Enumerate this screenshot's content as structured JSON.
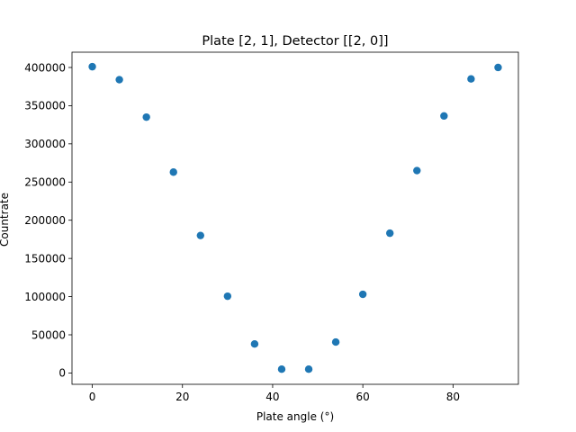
{
  "chart_data": {
    "type": "scatter",
    "title": "Plate [2, 1], Detector [[2, 0]]",
    "xlabel": "Plate angle (°)",
    "ylabel": "Countrate",
    "x": [
      0,
      6,
      12,
      18,
      24,
      30,
      36,
      42,
      48,
      54,
      60,
      66,
      72,
      78,
      84,
      90
    ],
    "y": [
      401000,
      384000,
      335000,
      263000,
      180000,
      100500,
      38000,
      5000,
      5000,
      40500,
      103000,
      183000,
      265000,
      336500,
      385000,
      400000
    ],
    "xlim": [
      -4.5,
      94.5
    ],
    "ylim": [
      -14800,
      420000
    ],
    "xticks": [
      0,
      20,
      40,
      60,
      80
    ],
    "xtick_labels": [
      "0",
      "20",
      "40",
      "60",
      "80"
    ],
    "yticks": [
      0,
      50000,
      100000,
      150000,
      200000,
      250000,
      300000,
      350000,
      400000
    ],
    "ytick_labels": [
      "0",
      "50000",
      "100000",
      "150000",
      "200000",
      "250000",
      "300000",
      "350000",
      "400000"
    ],
    "marker_color": "#1f77b4",
    "grid": false,
    "legend": "none"
  }
}
